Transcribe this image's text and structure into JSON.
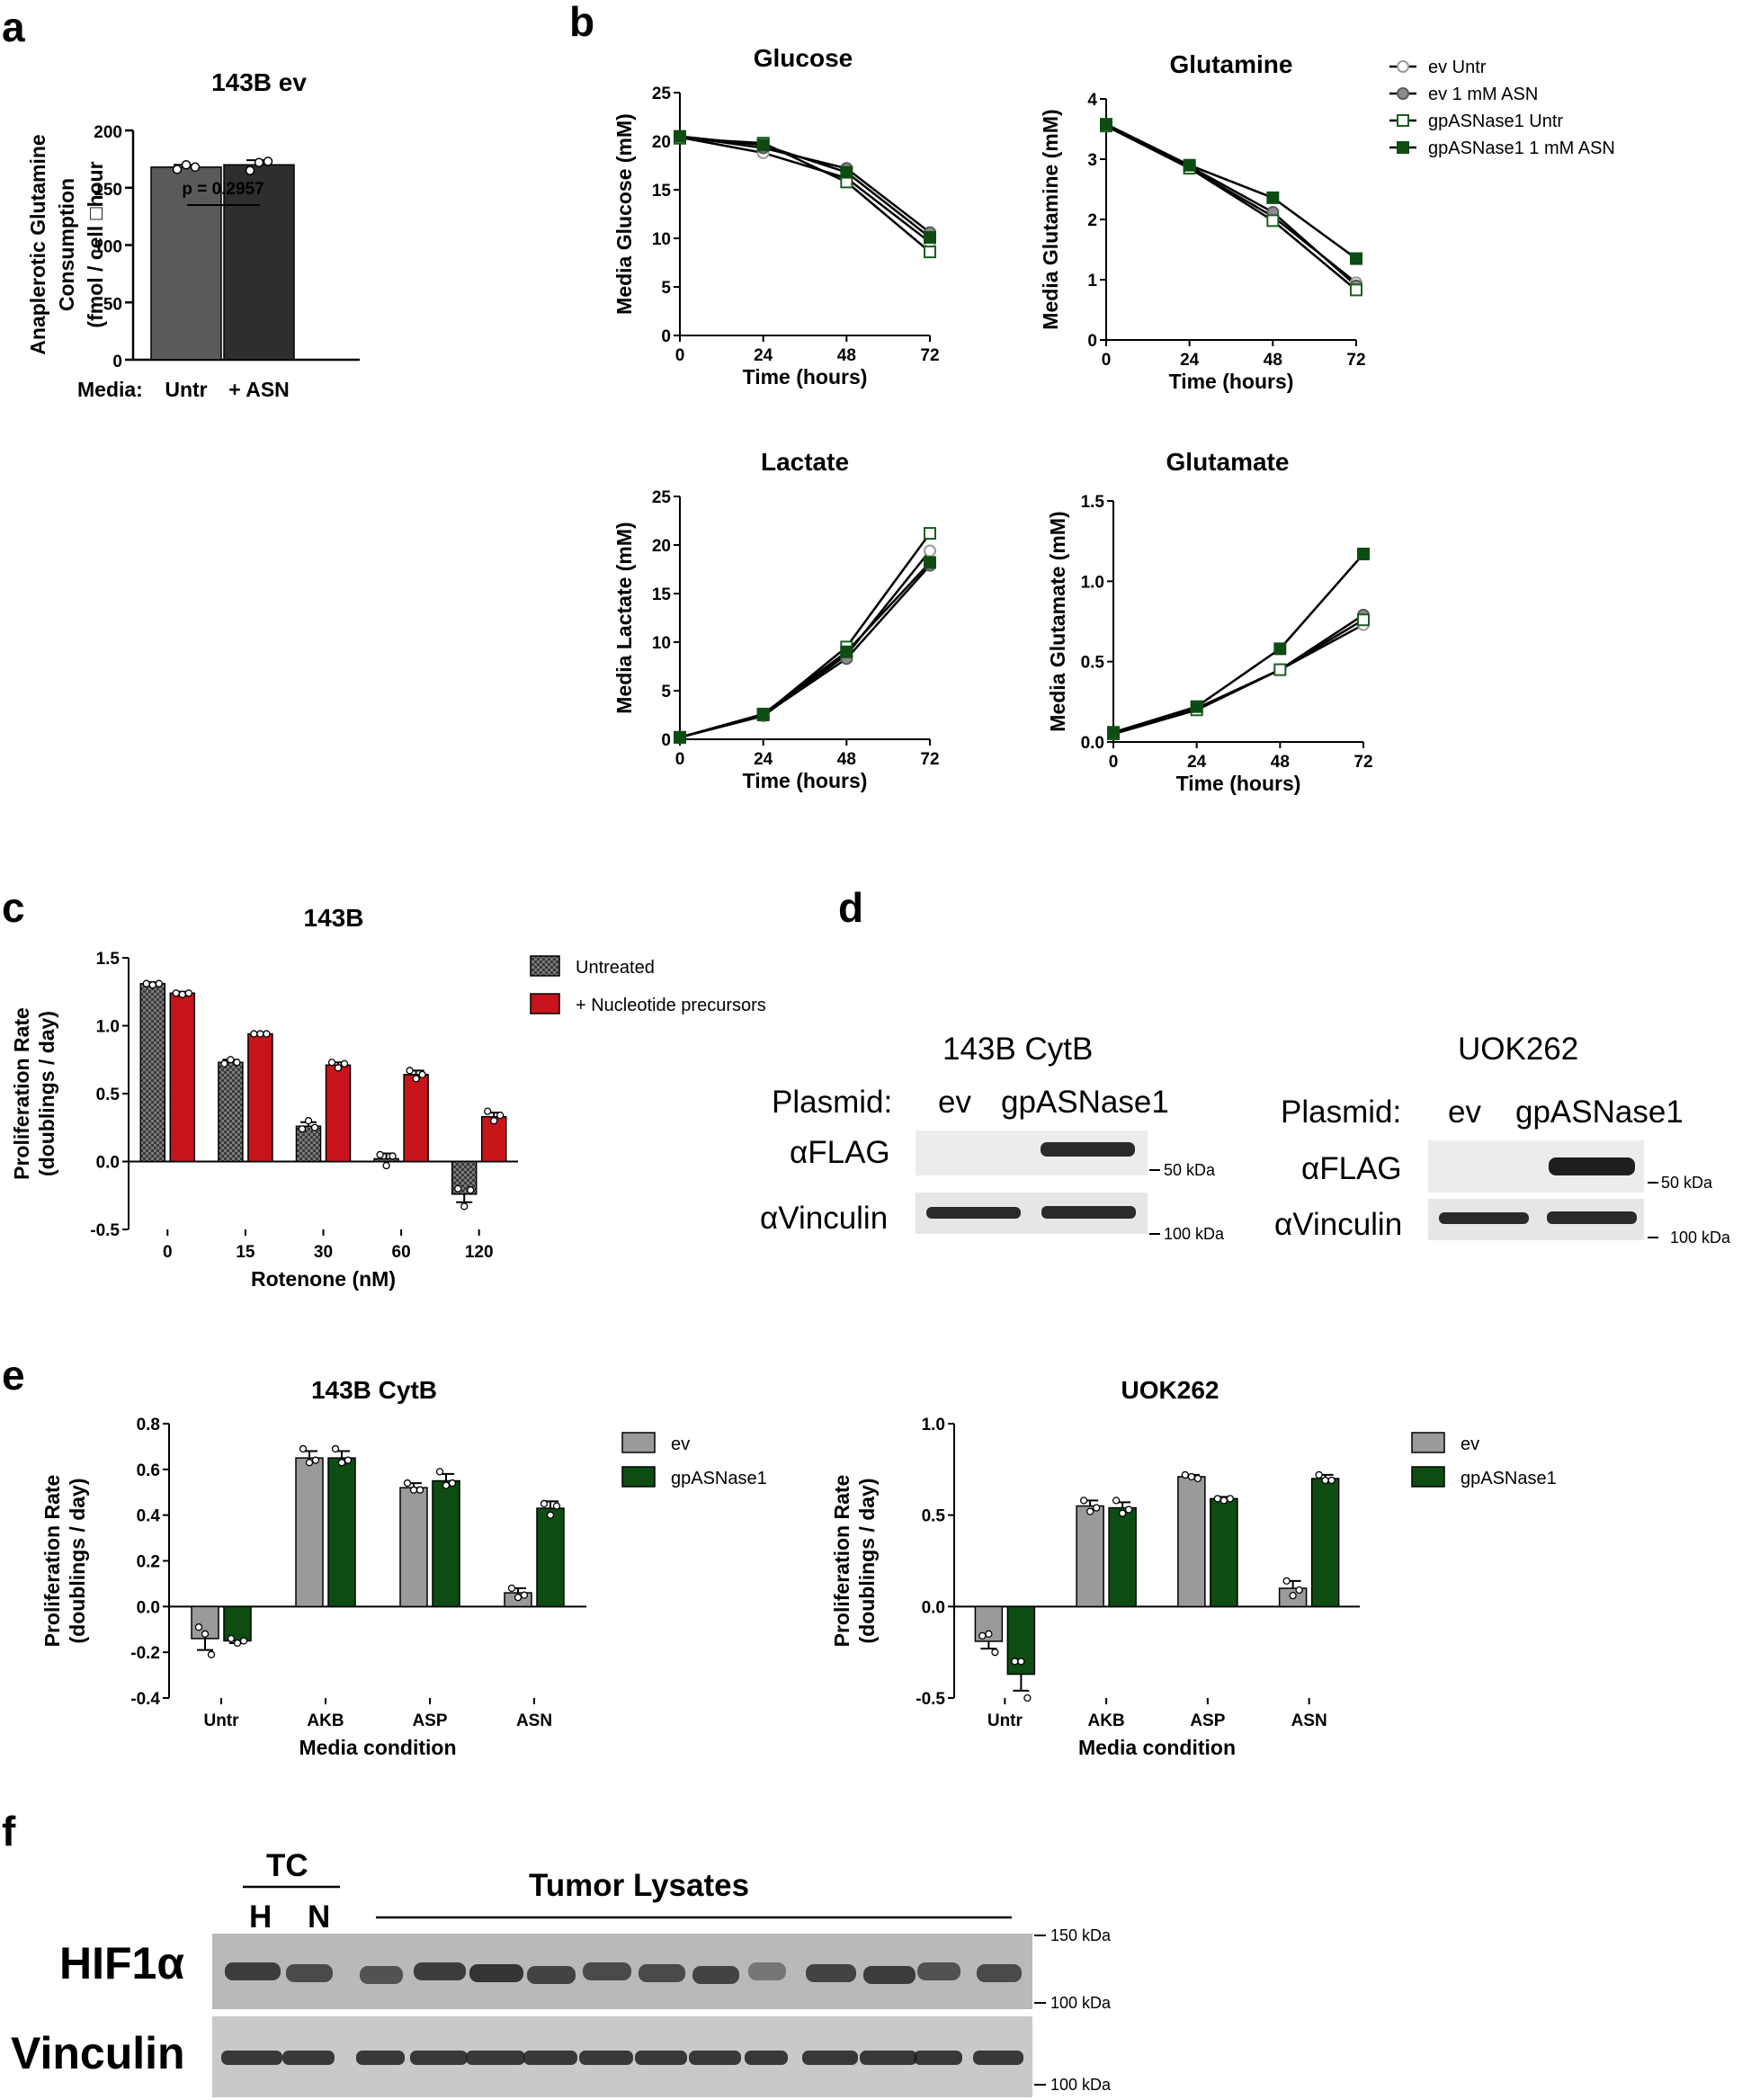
{
  "panel_labels": {
    "a": "a",
    "b": "b",
    "c": "c",
    "d": "d",
    "e": "e",
    "f": "f"
  },
  "colors": {
    "gray_dark": "#5a5a5a",
    "gray_black": "#2e2e2e",
    "green_dark": "#1b5e20",
    "green_fill": "#0d4d12",
    "red": "#c8141b",
    "gray_light": "#9a9a9a",
    "checker": "#555555"
  },
  "chart_data": [
    {
      "id": "a",
      "type": "bar",
      "title": "143B ev",
      "ylabel_lines": [
        "Anaplerotic Glutamine",
        "Consumption",
        "(fmol / cell □hour"
      ],
      "categories": [
        "Untr",
        "+ ASN"
      ],
      "category_prefix": "Media:",
      "values": [
        168,
        170
      ],
      "errors": [
        2,
        4
      ],
      "points": [
        [
          166,
          170,
          168
        ],
        [
          165,
          172,
          173
        ]
      ],
      "ylim": [
        0,
        200
      ],
      "yticks": [
        "0",
        "50",
        "100",
        "150",
        "200"
      ],
      "annotation": "p = 0.2957"
    },
    {
      "id": "b-glucose",
      "type": "line",
      "title": "Glucose",
      "xlabel": "Time (hours)",
      "ylabel": "Media Glucose (mM)",
      "x": [
        0,
        24,
        48,
        72
      ],
      "xticks": [
        "0",
        "24",
        "48",
        "72"
      ],
      "ylim": [
        0,
        25
      ],
      "yticks": [
        "0",
        "5",
        "10",
        "15",
        "20",
        "25"
      ],
      "series": [
        {
          "name": "ev Untr",
          "values": [
            20.4,
            18.8,
            16.2,
            9.6
          ]
        },
        {
          "name": "ev 1 mM ASN",
          "values": [
            20.5,
            19.3,
            17.2,
            10.6
          ]
        },
        {
          "name": "gpASNase1 Untr",
          "values": [
            20.3,
            19.8,
            15.8,
            8.6
          ]
        },
        {
          "name": "gpASNase1 1 mM ASN",
          "values": [
            20.5,
            19.6,
            16.8,
            10.1
          ]
        }
      ]
    },
    {
      "id": "b-glutamine",
      "type": "line",
      "title": "Glutamine",
      "xlabel": "Time (hours)",
      "ylabel": "Media Glutamine (mM)",
      "x": [
        0,
        24,
        48,
        72
      ],
      "xticks": [
        "0",
        "24",
        "48",
        "72"
      ],
      "ylim": [
        0,
        4
      ],
      "yticks": [
        "0",
        "1",
        "2",
        "3",
        "4"
      ],
      "series": [
        {
          "name": "ev Untr",
          "values": [
            3.55,
            2.85,
            2.05,
            0.95
          ]
        },
        {
          "name": "ev 1 mM ASN",
          "values": [
            3.58,
            2.88,
            2.12,
            0.9
          ]
        },
        {
          "name": "gpASNase1 Untr",
          "values": [
            3.55,
            2.85,
            1.98,
            0.83
          ]
        },
        {
          "name": "gpASNase1 1 mM ASN",
          "values": [
            3.58,
            2.9,
            2.36,
            1.35
          ]
        }
      ]
    },
    {
      "id": "b-lactate",
      "type": "line",
      "title": "Lactate",
      "xlabel": "Time (hours)",
      "ylabel": "Media Lactate (mM)",
      "x": [
        0,
        24,
        48,
        72
      ],
      "xticks": [
        "0",
        "24",
        "48",
        "72"
      ],
      "ylim": [
        0,
        25
      ],
      "yticks": [
        "0",
        "5",
        "10",
        "15",
        "20",
        "25"
      ],
      "series": [
        {
          "name": "ev Untr",
          "values": [
            0.2,
            2.4,
            8.7,
            19.4
          ]
        },
        {
          "name": "ev 1 mM ASN",
          "values": [
            0.2,
            2.5,
            8.3,
            17.9
          ]
        },
        {
          "name": "gpASNase1 Untr",
          "values": [
            0.2,
            2.5,
            9.5,
            21.2
          ]
        },
        {
          "name": "gpASNase1 1 mM ASN",
          "values": [
            0.2,
            2.6,
            9.0,
            18.2
          ]
        }
      ]
    },
    {
      "id": "b-glutamate",
      "type": "line",
      "title": "Glutamate",
      "xlabel": "Time (hours)",
      "ylabel": "Media Glutamate (mM)",
      "x": [
        0,
        24,
        48,
        72
      ],
      "xticks": [
        "0",
        "24",
        "48",
        "72"
      ],
      "ylim": [
        0,
        1.5
      ],
      "yticks": [
        "0.0",
        "0.5",
        "1.0",
        "1.5"
      ],
      "series": [
        {
          "name": "ev Untr",
          "values": [
            0.05,
            0.2,
            0.45,
            0.73
          ]
        },
        {
          "name": "ev 1 mM ASN",
          "values": [
            0.05,
            0.21,
            0.45,
            0.79
          ]
        },
        {
          "name": "gpASNase1 Untr",
          "values": [
            0.05,
            0.2,
            0.45,
            0.76
          ]
        },
        {
          "name": "gpASNase1 1 mM ASN",
          "values": [
            0.06,
            0.22,
            0.58,
            1.17
          ]
        }
      ]
    },
    {
      "id": "c",
      "type": "bar",
      "title": "143B",
      "xlabel": "Rotenone (nM)",
      "ylabel_lines": [
        "Proliferation Rate",
        "(doublings / day)"
      ],
      "categories": [
        "0",
        "15",
        "30",
        "60",
        "120"
      ],
      "ylim": [
        -0.5,
        1.5
      ],
      "yticks": [
        "-0.5",
        "0.0",
        "0.5",
        "1.0",
        "1.5"
      ],
      "series": [
        {
          "name": "Untreated",
          "values": [
            1.31,
            0.73,
            0.26,
            0.02,
            -0.24
          ],
          "errors": [
            0.01,
            0.02,
            0.03,
            0.04,
            0.06
          ],
          "points": [
            [
              1.31,
              1.3,
              1.31
            ],
            [
              0.72,
              0.75,
              0.73
            ],
            [
              0.24,
              0.3,
              0.25
            ],
            [
              0.05,
              -0.03,
              0.04
            ],
            [
              -0.2,
              -0.33,
              -0.21
            ]
          ]
        },
        {
          "name": "+ Nucleotide precursors",
          "values": [
            1.24,
            0.94,
            0.71,
            0.64,
            0.33
          ],
          "errors": [
            0.01,
            0.01,
            0.02,
            0.03,
            0.03
          ],
          "points": [
            [
              1.24,
              1.23,
              1.24
            ],
            [
              0.94,
              0.94,
              0.94
            ],
            [
              0.73,
              0.69,
              0.72
            ],
            [
              0.67,
              0.61,
              0.64
            ],
            [
              0.37,
              0.3,
              0.34
            ]
          ]
        }
      ]
    },
    {
      "id": "e-143B",
      "type": "bar",
      "title": "143B CytB",
      "xlabel": "Media condition",
      "ylabel_lines": [
        "Proliferation Rate",
        "(doublings / day)"
      ],
      "categories": [
        "Untr",
        "AKB",
        "ASP",
        "ASN"
      ],
      "ylim": [
        -0.4,
        0.8
      ],
      "yticks": [
        "-0.4",
        "-0.2",
        "0.0",
        "0.2",
        "0.4",
        "0.6",
        "0.8"
      ],
      "series": [
        {
          "name": "ev",
          "values": [
            -0.14,
            0.65,
            0.52,
            0.06
          ],
          "errors": [
            0.05,
            0.03,
            0.02,
            0.02
          ],
          "points": [
            [
              -0.09,
              -0.12,
              -0.21
            ],
            [
              0.69,
              0.63,
              0.64
            ],
            [
              0.54,
              0.51,
              0.51
            ],
            [
              0.08,
              0.04,
              0.05
            ]
          ]
        },
        {
          "name": "gpASNase1",
          "values": [
            -0.15,
            0.65,
            0.55,
            0.43
          ],
          "errors": [
            0.01,
            0.03,
            0.03,
            0.03
          ],
          "points": [
            [
              -0.14,
              -0.16,
              -0.15
            ],
            [
              0.69,
              0.63,
              0.64
            ],
            [
              0.59,
              0.53,
              0.54
            ],
            [
              0.45,
              0.4,
              0.44
            ]
          ]
        }
      ]
    },
    {
      "id": "e-UOK262",
      "type": "bar",
      "title": "UOK262",
      "xlabel": "Media condition",
      "ylabel_lines": [
        "Proliferation Rate",
        "(doublings / day)"
      ],
      "categories": [
        "Untr",
        "AKB",
        "ASP",
        "ASN"
      ],
      "ylim": [
        -0.5,
        1.0
      ],
      "yticks": [
        "-0.5",
        "0.0",
        "0.5",
        "1.0"
      ],
      "series": [
        {
          "name": "ev",
          "values": [
            -0.19,
            0.55,
            0.71,
            0.1
          ],
          "errors": [
            0.04,
            0.03,
            0.01,
            0.04
          ],
          "points": [
            [
              -0.16,
              -0.15,
              -0.25
            ],
            [
              0.58,
              0.52,
              0.54
            ],
            [
              0.72,
              0.71,
              0.7
            ],
            [
              0.14,
              0.06,
              0.09
            ]
          ]
        },
        {
          "name": "gpASNase1",
          "values": [
            -0.37,
            0.54,
            0.59,
            0.7
          ],
          "errors": [
            0.09,
            0.03,
            0.01,
            0.02
          ],
          "points": [
            [
              -0.3,
              -0.3,
              -0.5
            ],
            [
              0.58,
              0.51,
              0.53
            ],
            [
              0.59,
              0.58,
              0.59
            ],
            [
              0.72,
              0.69,
              0.69
            ]
          ]
        }
      ]
    }
  ],
  "legend_b": [
    "ev Untr",
    "ev 1 mM ASN",
    "gpASNase1 Untr",
    "gpASNase1 1 mM ASN"
  ],
  "legend_c": [
    "Untreated",
    "+ Nucleotide precursors"
  ],
  "legend_e": [
    "ev",
    "gpASNase1"
  ],
  "western_d": [
    {
      "title": "143B CytB",
      "plasmid_label": "Plasmid:",
      "lanes": [
        "ev",
        "gpASNase1"
      ],
      "rows": [
        "αFLAG",
        "αVinculin"
      ],
      "markers": [
        "50 kDa",
        "100 kDa"
      ]
    },
    {
      "title": "UOK262",
      "plasmid_label": "Plasmid:",
      "lanes": [
        "ev",
        "gpASNase1"
      ],
      "rows": [
        "αFLAG",
        "αVinculin"
      ],
      "markers": [
        "50 kDa",
        "100 kDa"
      ]
    }
  ],
  "western_f": {
    "group_tc": "TC",
    "tc_lanes": [
      "H",
      "N"
    ],
    "group_tumor": "Tumor Lysates",
    "rows": [
      "HIF1α",
      "Vinculin"
    ],
    "markers": [
      "150 kDa",
      "100 kDa",
      "100 kDa"
    ]
  }
}
